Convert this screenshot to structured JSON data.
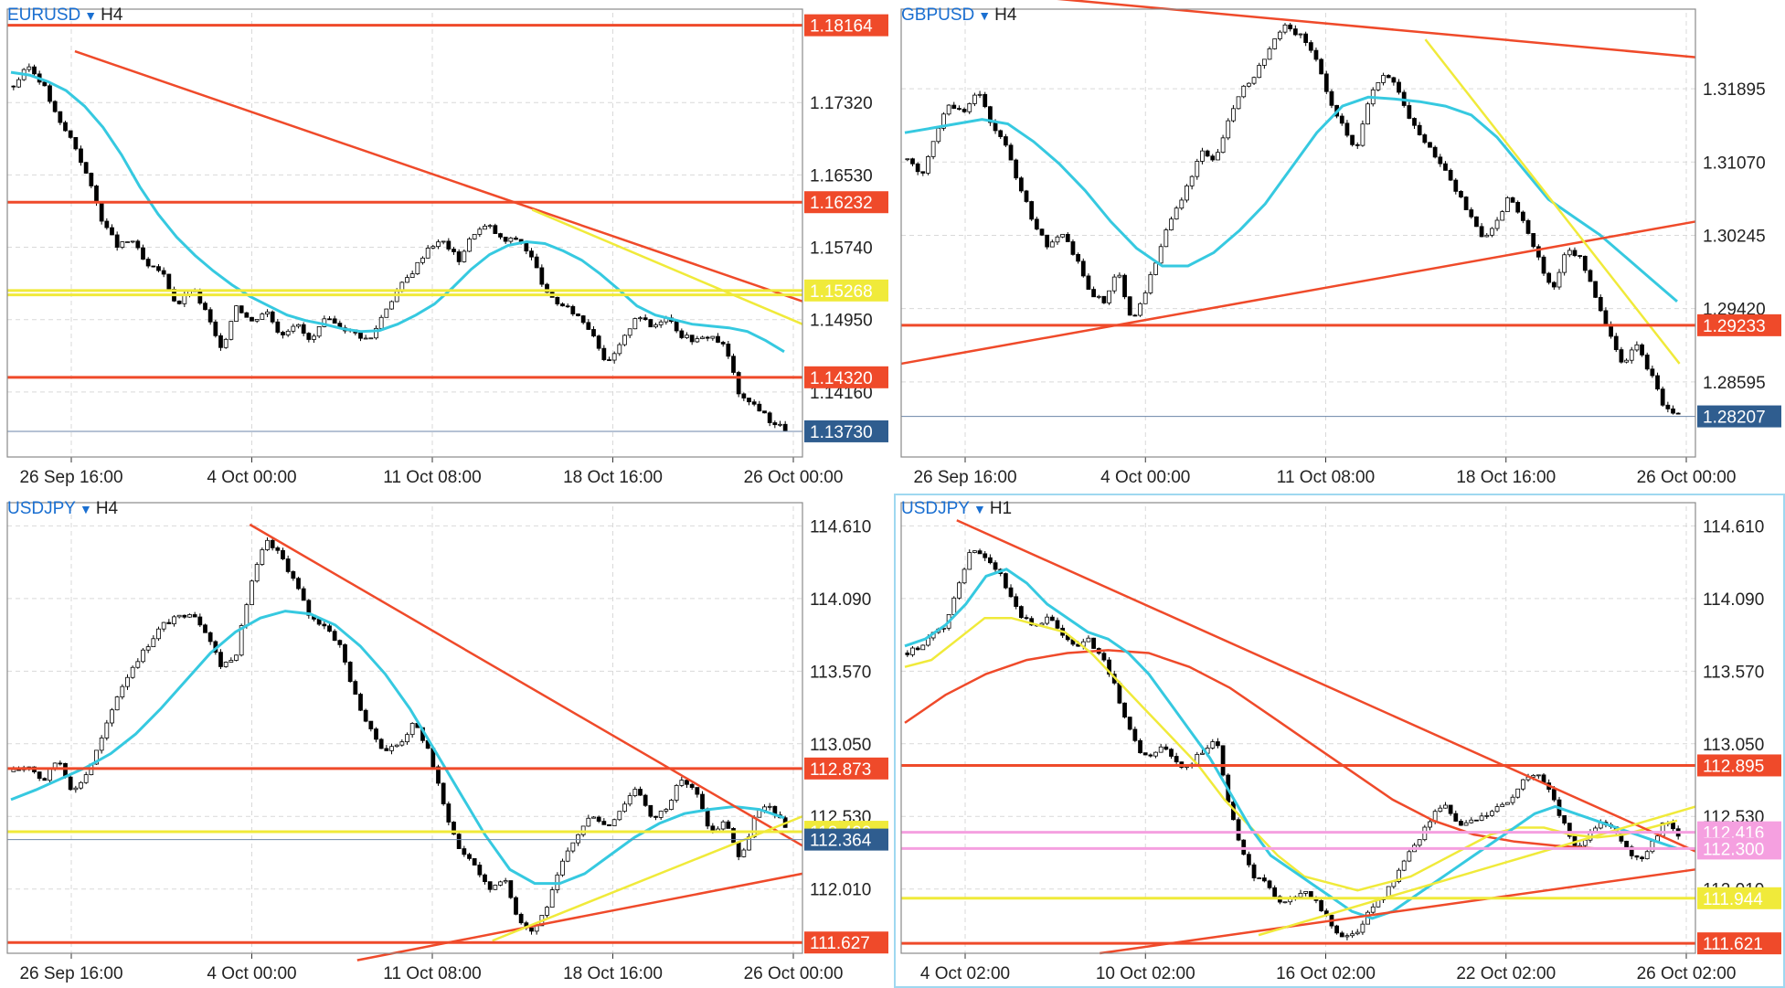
{
  "colors": {
    "grid": "#d9d9d9",
    "frame": "#8a8a8a",
    "bull_body": "#ffffff",
    "bear_body": "#000000",
    "wick": "#000000",
    "red_line": "#ef4a2a",
    "yellow_line": "#f0ea3a",
    "cyan_ma": "#36c9e0",
    "pink_line": "#f5a0e0",
    "price_tag": "#2f5d8f",
    "active_border": "#9fd8f0"
  },
  "panels": [
    {
      "id": "p1",
      "symbol": "EURUSD",
      "timeframe": "H4",
      "active": false,
      "chart_data": {
        "type": "candlestick",
        "ylim": [
          1.1345,
          1.183
        ],
        "ticks": [
          "1.17320",
          "1.16530",
          "1.15740",
          "1.14950",
          "1.14160"
        ],
        "xticks": [
          "26 Sep 16:00",
          "4 Oct 00:00",
          "11 Oct 08:00",
          "18 Oct 16:00",
          "26 Oct 00:00"
        ],
        "close_path": [
          1.175,
          1.1772,
          1.1752,
          1.1712,
          1.169,
          1.165,
          1.1602,
          1.1575,
          1.1582,
          1.1552,
          1.1548,
          1.151,
          1.153,
          1.1502,
          1.146,
          1.1512,
          1.1492,
          1.1506,
          1.1478,
          1.1492,
          1.147,
          1.1495,
          1.1488,
          1.148,
          1.1472,
          1.1505,
          1.153,
          1.155,
          1.1576,
          1.158,
          1.156,
          1.159,
          1.1598,
          1.158,
          1.1584,
          1.156,
          1.152,
          1.151,
          1.15,
          1.1482,
          1.1445,
          1.147,
          1.1502,
          1.1486,
          1.15,
          1.1478,
          1.1472,
          1.1478,
          1.1464,
          1.1408,
          1.1402,
          1.1384,
          1.1376
        ],
        "ma": [
          1.1765,
          1.1762,
          1.1755,
          1.1745,
          1.1728,
          1.1705,
          1.1675,
          1.164,
          1.161,
          1.1585,
          1.1565,
          1.1548,
          1.1533,
          1.152,
          1.151,
          1.15,
          1.1494,
          1.149,
          1.1485,
          1.1482,
          1.1483,
          1.149,
          1.15,
          1.1512,
          1.153,
          1.155,
          1.1566,
          1.1576,
          1.158,
          1.1578,
          1.157,
          1.156,
          1.1545,
          1.1528,
          1.151,
          1.15,
          1.1495,
          1.149,
          1.1488,
          1.1486,
          1.1482,
          1.1472,
          1.146
        ],
        "levels": [
          {
            "price": "1.18164",
            "color": "#ef4a2a",
            "tag": true
          },
          {
            "price": "1.16232",
            "color": "#ef4a2a",
            "tag": true
          },
          {
            "price": "1.15268",
            "color": "#f0ea3a",
            "tag": true
          },
          {
            "price": "1.15220",
            "color": "#f0ea3a",
            "tag": false
          },
          {
            "price": "1.14320",
            "color": "#ef4a2a",
            "tag": true
          }
        ],
        "trendlines": [
          {
            "from": [
              0.085,
              1.1788
            ],
            "to": [
              1.0,
              1.1515
            ],
            "color": "#ef4a2a"
          },
          {
            "from": [
              0.66,
              1.1615
            ],
            "to": [
              1.0,
              1.149
            ],
            "color": "#f0ea3a"
          }
        ],
        "last_price": "1.13730"
      }
    },
    {
      "id": "p2",
      "symbol": "GBPUSD",
      "timeframe": "H4",
      "active": false,
      "chart_data": {
        "type": "candlestick",
        "ylim": [
          1.2775,
          1.3275
        ],
        "ticks": [
          "1.31895",
          "1.31070",
          "1.30245",
          "1.29420",
          "1.28595"
        ],
        "xticks": [
          "26 Sep 16:00",
          "4 Oct 00:00",
          "11 Oct 08:00",
          "18 Oct 16:00",
          "26 Oct 00:00"
        ],
        "close_path": [
          1.311,
          1.309,
          1.314,
          1.3175,
          1.316,
          1.319,
          1.315,
          1.3125,
          1.308,
          1.304,
          1.301,
          1.303,
          1.3,
          1.296,
          1.295,
          1.2985,
          1.293,
          1.296,
          1.301,
          1.305,
          1.308,
          1.312,
          1.311,
          1.316,
          1.319,
          1.321,
          1.324,
          1.326,
          1.325,
          1.323,
          1.318,
          1.315,
          1.312,
          1.318,
          1.3205,
          1.319,
          1.315,
          1.313,
          1.3105,
          1.308,
          1.305,
          1.302,
          1.304,
          1.307,
          1.304,
          1.3,
          1.296,
          1.301,
          1.3,
          1.296,
          1.292,
          1.288,
          1.29,
          1.287,
          1.283,
          1.2822
        ],
        "ma": [
          1.314,
          1.3145,
          1.315,
          1.3155,
          1.315,
          1.313,
          1.3105,
          1.3075,
          1.304,
          1.301,
          1.299,
          1.299,
          1.3005,
          1.303,
          1.306,
          1.31,
          1.314,
          1.317,
          1.318,
          1.3178,
          1.3175,
          1.317,
          1.316,
          1.3135,
          1.31,
          1.3065,
          1.3045,
          1.3025,
          1.3,
          1.2975,
          1.295
        ],
        "levels": [
          {
            "price": "1.29233",
            "color": "#ef4a2a",
            "tag": true
          }
        ],
        "trendlines": [
          {
            "from": [
              0.18,
              1.3292
            ],
            "to": [
              1.0,
              1.3225
            ],
            "color": "#ef4a2a"
          },
          {
            "from": [
              0.0,
              1.288
            ],
            "to": [
              1.0,
              1.304
            ],
            "color": "#ef4a2a"
          },
          {
            "from": [
              0.66,
              1.3245
            ],
            "to": [
              0.98,
              1.288
            ],
            "color": "#f0ea3a"
          }
        ],
        "last_price": "1.28207"
      }
    },
    {
      "id": "p3",
      "symbol": "USDJPY",
      "timeframe": "H4",
      "active": false,
      "chart_data": {
        "type": "candlestick",
        "ylim": [
          111.55,
          114.75
        ],
        "ticks": [
          "114.610",
          "114.090",
          "113.570",
          "113.050",
          "112.530",
          "112.010"
        ],
        "xticks": [
          "26 Sep 16:00",
          "4 Oct 00:00",
          "11 Oct 08:00",
          "18 Oct 16:00",
          "26 Oct 00:00"
        ],
        "close_path": [
          112.85,
          112.9,
          112.78,
          112.95,
          112.7,
          112.85,
          113.1,
          113.4,
          113.6,
          113.75,
          113.9,
          113.95,
          114.0,
          113.85,
          113.6,
          113.7,
          114.2,
          114.5,
          114.4,
          114.2,
          113.95,
          113.9,
          113.75,
          113.4,
          113.15,
          113.0,
          113.05,
          113.2,
          113.0,
          112.6,
          112.3,
          112.2,
          112.0,
          112.1,
          111.8,
          111.7,
          111.9,
          112.2,
          112.4,
          112.55,
          112.45,
          112.6,
          112.75,
          112.5,
          112.6,
          112.8,
          112.7,
          112.4,
          112.5,
          112.2,
          112.55,
          112.6,
          112.45
        ],
        "ma": [
          112.65,
          112.72,
          112.8,
          112.88,
          112.98,
          113.12,
          113.3,
          113.5,
          113.7,
          113.85,
          113.95,
          114.0,
          113.98,
          113.9,
          113.75,
          113.55,
          113.3,
          113.0,
          112.7,
          112.4,
          112.15,
          112.05,
          112.05,
          112.12,
          112.25,
          112.38,
          112.48,
          112.55,
          112.58,
          112.6,
          112.58,
          112.52
        ],
        "levels": [
          {
            "price": "112.873",
            "color": "#ef4a2a",
            "tag": true
          },
          {
            "price": "112.420",
            "color": "#f0ea3a",
            "tag": true
          },
          {
            "price": "111.627",
            "color": "#ef4a2a",
            "tag": true
          }
        ],
        "trendlines": [
          {
            "from": [
              0.305,
              114.62
            ],
            "to": [
              1.0,
              112.32
            ],
            "color": "#ef4a2a"
          },
          {
            "from": [
              0.44,
              111.5
            ],
            "to": [
              1.0,
              112.12
            ],
            "color": "#ef4a2a"
          },
          {
            "from": [
              0.61,
              111.64
            ],
            "to": [
              1.0,
              112.53
            ],
            "color": "#f0ea3a"
          }
        ],
        "last_price": "112.364"
      }
    },
    {
      "id": "p4",
      "symbol": "USDJPY",
      "timeframe": "H1",
      "active": true,
      "chart_data": {
        "type": "candlestick",
        "ylim": [
          111.55,
          114.75
        ],
        "ticks": [
          "114.610",
          "114.090",
          "113.570",
          "113.050",
          "112.530",
          "112.010"
        ],
        "xticks": [
          "4 Oct 02:00",
          "10 Oct 02:00",
          "16 Oct 02:00",
          "22 Oct 02:00",
          "26 Oct 02:00"
        ],
        "close_path": [
          113.7,
          113.75,
          113.85,
          113.9,
          114.2,
          114.45,
          114.4,
          114.3,
          114.1,
          113.95,
          113.9,
          113.95,
          113.85,
          113.75,
          113.8,
          113.7,
          113.5,
          113.2,
          113.0,
          112.95,
          113.05,
          112.9,
          112.9,
          113.0,
          113.1,
          112.6,
          112.3,
          112.1,
          112.05,
          111.9,
          111.95,
          112.0,
          111.9,
          111.75,
          111.65,
          111.7,
          111.85,
          111.95,
          112.1,
          112.25,
          112.4,
          112.55,
          112.6,
          112.45,
          112.5,
          112.55,
          112.6,
          112.65,
          112.8,
          112.85,
          112.7,
          112.5,
          112.3,
          112.4,
          112.5,
          112.45,
          112.3,
          112.2,
          112.35,
          112.5,
          112.4
        ],
        "ma": [
          113.75,
          113.8,
          113.9,
          114.05,
          114.25,
          114.3,
          114.2,
          114.05,
          113.95,
          113.85,
          113.8,
          113.7,
          113.55,
          113.35,
          113.15,
          112.95,
          112.7,
          112.45,
          112.25,
          112.15,
          112.05,
          111.95,
          111.85,
          111.8,
          111.85,
          111.95,
          112.05,
          112.15,
          112.25,
          112.35,
          112.45,
          112.55,
          112.6,
          112.55,
          112.5,
          112.45,
          112.4,
          112.35,
          112.3
        ],
        "ma2": [
          113.6,
          113.65,
          113.8,
          113.95,
          113.95,
          113.9,
          113.85,
          113.7,
          113.5,
          113.3,
          113.1,
          112.9,
          112.65,
          112.45,
          112.25,
          112.1,
          112.05,
          112.0,
          112.05,
          112.1,
          112.2,
          112.3,
          112.4,
          112.45,
          112.45,
          112.4,
          112.38,
          112.4,
          112.45,
          112.5
        ],
        "ma3": [
          113.2,
          113.4,
          113.55,
          113.65,
          113.7,
          113.72,
          113.7,
          113.6,
          113.45,
          113.25,
          113.05,
          112.85,
          112.65,
          112.5,
          112.4,
          112.35,
          112.32,
          112.3,
          112.3,
          112.3
        ],
        "levels": [
          {
            "price": "112.895",
            "color": "#ef4a2a",
            "tag": true
          },
          {
            "price": "112.416",
            "color": "#f5a0e0",
            "tag": true
          },
          {
            "price": "112.300",
            "color": "#f5a0e0",
            "tag": true
          },
          {
            "price": "111.944",
            "color": "#f0ea3a",
            "tag": true
          },
          {
            "price": "111.621",
            "color": "#ef4a2a",
            "tag": true
          }
        ],
        "trendlines": [
          {
            "from": [
              0.07,
              114.65
            ],
            "to": [
              1.0,
              112.28
            ],
            "color": "#ef4a2a"
          },
          {
            "from": [
              0.25,
              111.55
            ],
            "to": [
              1.0,
              112.15
            ],
            "color": "#ef4a2a"
          },
          {
            "from": [
              0.45,
              111.68
            ],
            "to": [
              1.0,
              112.6
            ],
            "color": "#f0ea3a"
          }
        ],
        "last_price": ""
      }
    }
  ]
}
